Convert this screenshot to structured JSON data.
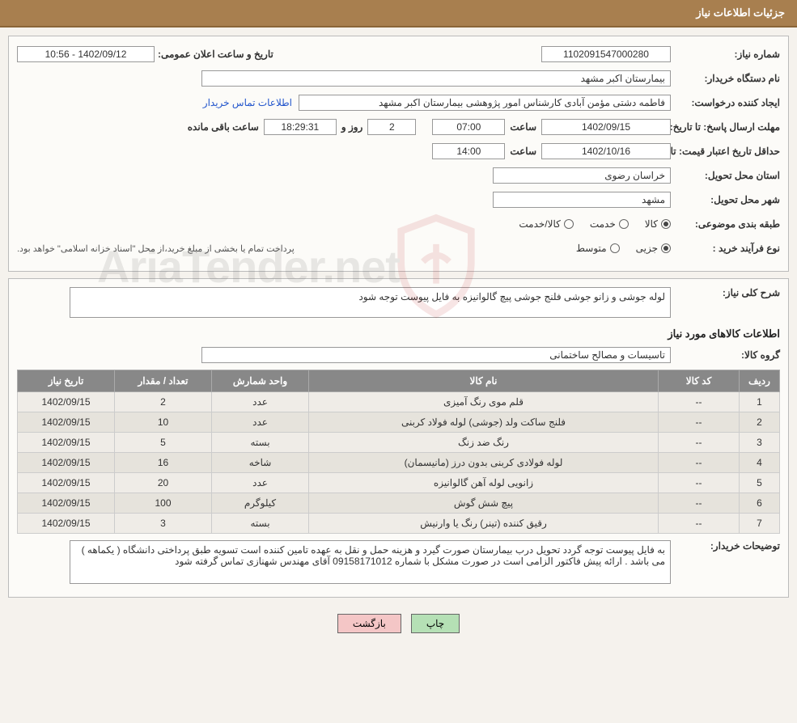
{
  "header": {
    "title": "جزئیات اطلاعات نیاز"
  },
  "watermark": {
    "text": "AriaTender.net"
  },
  "need": {
    "number_label": "شماره نیاز:",
    "number": "1102091547000280",
    "public_date_label": "تاریخ و ساعت اعلان عمومی:",
    "public_date": "1402/09/12 - 10:56",
    "buyer_label": "نام دستگاه خریدار:",
    "buyer": "بیمارستان اکبر مشهد",
    "requester_label": "ایجاد کننده درخواست:",
    "requester": "فاطمه دشتی مؤمن آبادی کارشناس امور پژوهشی بیمارستان اکبر مشهد",
    "contact_link": "اطلاعات تماس خریدار",
    "deadline_label": "مهلت ارسال پاسخ: تا تاریخ:",
    "deadline_date": "1402/09/15",
    "time_label": "ساعت",
    "deadline_time": "07:00",
    "days_label": "روز و",
    "days_value": "2",
    "countdown": "18:29:31",
    "remaining_label": "ساعت باقی مانده",
    "validity_label": "حداقل تاریخ اعتبار قیمت: تا تاریخ:",
    "validity_date": "1402/10/16",
    "validity_time": "14:00",
    "province_label": "استان محل تحویل:",
    "province": "خراسان رضوی",
    "city_label": "شهر محل تحویل:",
    "city": "مشهد",
    "category_label": "طبقه بندی موضوعی:",
    "radio_goods": "کالا",
    "radio_service": "خدمت",
    "radio_both": "کالا/خدمت",
    "process_label": "نوع فرآیند خرید :",
    "radio_partial": "جزیی",
    "radio_medium": "متوسط",
    "payment_note": "پرداخت تمام یا بخشی از مبلغ خرید،از محل \"اسناد خزانه اسلامی\" خواهد بود."
  },
  "desc": {
    "overall_label": "شرح کلی نیاز:",
    "overall_text": "لوله جوشی و زانو جوشی فلنج جوشی پیچ گالوانیزه  به فایل پیوست توجه شود",
    "items_title": "اطلاعات کالاهای مورد نیاز",
    "group_label": "گروه کالا:",
    "group_value": "تاسیسات و مصالح ساختمانی"
  },
  "table": {
    "headers": {
      "row": "ردیف",
      "code": "کد کالا",
      "name": "نام کالا",
      "unit": "واحد شمارش",
      "qty": "تعداد / مقدار",
      "date": "تاریخ نیاز"
    },
    "rows": [
      {
        "n": "1",
        "code": "--",
        "name": "قلم موی رنگ آمیزی",
        "unit": "عدد",
        "qty": "2",
        "date": "1402/09/15"
      },
      {
        "n": "2",
        "code": "--",
        "name": "فلنج ساکت ولد (جوشی) لوله فولاد کربنی",
        "unit": "عدد",
        "qty": "10",
        "date": "1402/09/15"
      },
      {
        "n": "3",
        "code": "--",
        "name": "رنگ ضد زنگ",
        "unit": "بسته",
        "qty": "5",
        "date": "1402/09/15"
      },
      {
        "n": "4",
        "code": "--",
        "name": "لوله فولادی کربنی بدون درز (مانیسمان)",
        "unit": "شاخه",
        "qty": "16",
        "date": "1402/09/15"
      },
      {
        "n": "5",
        "code": "--",
        "name": "زانویی لوله آهن گالوانیزه",
        "unit": "عدد",
        "qty": "20",
        "date": "1402/09/15"
      },
      {
        "n": "6",
        "code": "--",
        "name": "پیچ شش گوش",
        "unit": "کیلوگرم",
        "qty": "100",
        "date": "1402/09/15"
      },
      {
        "n": "7",
        "code": "--",
        "name": "رقیق کننده (تینر) رنگ یا وارنیش",
        "unit": "بسته",
        "qty": "3",
        "date": "1402/09/15"
      }
    ]
  },
  "buyer_notes": {
    "label": "توضیحات خریدار:",
    "text": "به فایل پیوست توجه گردد تحویل درب بیمارستان صورت گیرد و هزینه حمل و نقل به عهده تامین کننده است  تسویه طبق پرداختی دانشگاه ( یکماهه ) می باشد . ارائه پیش فاکتور الزامی است در صورت مشکل با شماره 09158171012 آقای مهندس شهنازی تماس گرفته شود"
  },
  "buttons": {
    "print": "چاپ",
    "back": "بازگشت"
  },
  "colors": {
    "header_bg": "#a87f4f",
    "panel_bg": "#fcfbf8",
    "table_header_bg": "#888888",
    "row_odd": "#efece7",
    "row_even": "#e6e3dc",
    "link": "#2255cc",
    "btn_print": "#b5e0b5",
    "btn_back": "#f4c6c6"
  }
}
